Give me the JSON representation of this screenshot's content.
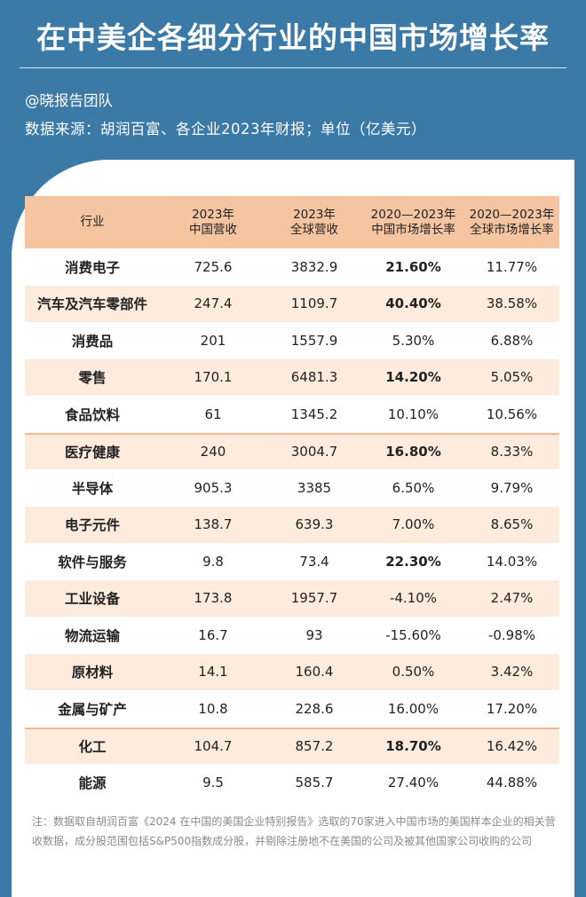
{
  "title": "在中美企各细分行业的中国市场增长率",
  "author": "@晓报告团队",
  "source": "数据来源：胡润百富、各企业2023年财报；单位（亿美元）",
  "table": {
    "headers": [
      {
        "line1": "行业",
        "line2": ""
      },
      {
        "line1": "2023年",
        "line2": "中国营收"
      },
      {
        "line1": "2023年",
        "line2": "全球营收"
      },
      {
        "line1": "2020—2023年",
        "line2": "中国市场增长率"
      },
      {
        "line1": "2020—2023年",
        "line2": "全球市场增长率"
      }
    ],
    "rows": [
      {
        "industry": "消费电子",
        "china_rev": "725.6",
        "global_rev": "3832.9",
        "china_growth": "21.60%",
        "global_growth": "11.77%",
        "bold": true
      },
      {
        "industry": "汽车及汽车零部件",
        "china_rev": "247.4",
        "global_rev": "1109.7",
        "china_growth": "40.40%",
        "global_growth": "38.58%",
        "bold": true
      },
      {
        "industry": "消费品",
        "china_rev": "201",
        "global_rev": "1557.9",
        "china_growth": "5.30%",
        "global_growth": "6.88%",
        "bold": false
      },
      {
        "industry": "零售",
        "china_rev": "170.1",
        "global_rev": "6481.3",
        "china_growth": "14.20%",
        "global_growth": "5.05%",
        "bold": true
      },
      {
        "industry": "食品饮料",
        "china_rev": "61",
        "global_rev": "1345.2",
        "china_growth": "10.10%",
        "global_growth": "10.56%",
        "bold": false
      },
      {
        "industry": "医疗健康",
        "china_rev": "240",
        "global_rev": "3004.7",
        "china_growth": "16.80%",
        "global_growth": "8.33%",
        "bold": true
      },
      {
        "industry": "半导体",
        "china_rev": "905.3",
        "global_rev": "3385",
        "china_growth": "6.50%",
        "global_growth": "9.79%",
        "bold": false
      },
      {
        "industry": "电子元件",
        "china_rev": "138.7",
        "global_rev": "639.3",
        "china_growth": "7.00%",
        "global_growth": "8.65%",
        "bold": false
      },
      {
        "industry": "软件与服务",
        "china_rev": "9.8",
        "global_rev": "73.4",
        "china_growth": "22.30%",
        "global_growth": "14.03%",
        "bold": true
      },
      {
        "industry": "工业设备",
        "china_rev": "173.8",
        "global_rev": "1957.7",
        "china_growth": "-4.10%",
        "global_growth": "2.47%",
        "bold": false
      },
      {
        "industry": "物流运输",
        "china_rev": "16.7",
        "global_rev": "93",
        "china_growth": "-15.60%",
        "global_growth": "-0.98%",
        "bold": false
      },
      {
        "industry": "原材料",
        "china_rev": "14.1",
        "global_rev": "160.4",
        "china_growth": "0.50%",
        "global_growth": "3.42%",
        "bold": false
      },
      {
        "industry": "金属与矿产",
        "china_rev": "10.8",
        "global_rev": "228.6",
        "china_growth": "16.00%",
        "global_growth": "17.20%",
        "bold": false
      },
      {
        "industry": "化工",
        "china_rev": "104.7",
        "global_rev": "857.2",
        "china_growth": "18.70%",
        "global_growth": "16.42%",
        "bold": true
      },
      {
        "industry": "能源",
        "china_rev": "9.5",
        "global_rev": "585.7",
        "china_growth": "27.40%",
        "global_growth": "44.88%",
        "bold": false
      }
    ]
  },
  "note": "注：数据取自胡润百富《2024 在中国的美国企业特别报告》选取的70家进入中国市场的美国样本企业的相关营收数据，成分股范围包括S&P500指数成分股，并剔除注册地不在美国的公司及被其他国家公司收购的公司",
  "colors": {
    "background": "#3b79a6",
    "header_fill": "#f5c4a0",
    "alt_row_fill": "#fdebdd"
  }
}
